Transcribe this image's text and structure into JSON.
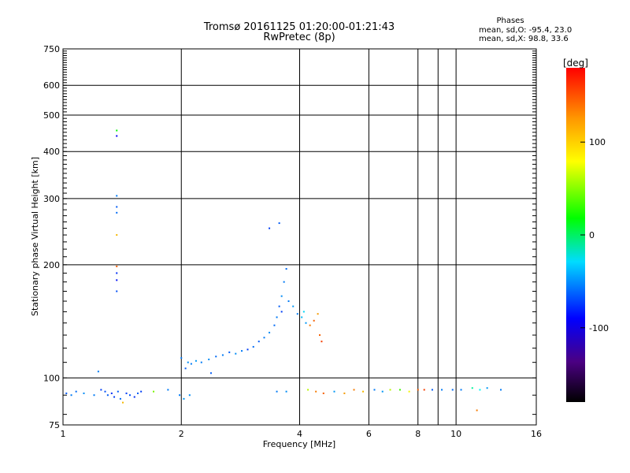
{
  "header": {
    "title_line1": "Tromsø 20161125 01:20:00-01:21:43",
    "title_line2": "RwPretec (8p)",
    "phases_label": "Phases",
    "phases_o": "mean, sd,O: -95.4, 23.0",
    "phases_x": "mean, sd,X:  98.8, 33.6"
  },
  "colorbar": {
    "label": "[deg]",
    "ticks": [
      "100",
      "0",
      "-100"
    ],
    "tick_values": [
      100,
      0,
      -100
    ],
    "range": [
      -180,
      180
    ]
  },
  "chart_data": {
    "type": "scatter",
    "title": "Tromsø 20161125 01:20:00-01:21:43",
    "subtitle": "RwPretec (8p)",
    "xlabel": "Frequency [MHz]",
    "ylabel": "Stationary phase Virtual Height [km]",
    "xscale": "log",
    "yscale": "log",
    "xlim": [
      1,
      16
    ],
    "ylim": [
      75,
      750
    ],
    "x_ticks": [
      1,
      2,
      4,
      6,
      8,
      10,
      16
    ],
    "x_tick_labels": [
      "1",
      "2",
      "4",
      "6",
      "8",
      "10",
      "16"
    ],
    "y_ticks": [
      75,
      100,
      200,
      300,
      400,
      500,
      600,
      750
    ],
    "y_tick_labels": [
      "75",
      "100",
      "200",
      "300",
      "400",
      "500",
      "600",
      "750"
    ],
    "grid": true,
    "color_encodes": "phase [deg]",
    "points": [
      [
        1.02,
        91,
        -110
      ],
      [
        1.05,
        90,
        -100
      ],
      [
        1.08,
        92,
        -105
      ],
      [
        1.13,
        91,
        -95
      ],
      [
        1.2,
        90,
        -100
      ],
      [
        1.25,
        93,
        -120
      ],
      [
        1.28,
        92,
        -115
      ],
      [
        1.3,
        90,
        -110
      ],
      [
        1.33,
        91,
        -125
      ],
      [
        1.35,
        89,
        -120
      ],
      [
        1.38,
        92,
        -110
      ],
      [
        1.4,
        88,
        -105
      ],
      [
        1.42,
        86,
        120
      ],
      [
        1.45,
        91,
        -120
      ],
      [
        1.48,
        90,
        -115
      ],
      [
        1.52,
        89,
        -125
      ],
      [
        1.55,
        91,
        -110
      ],
      [
        1.58,
        92,
        -120
      ],
      [
        1.7,
        92,
        60
      ],
      [
        1.85,
        93,
        -100
      ],
      [
        1.98,
        90,
        -100
      ],
      [
        2.03,
        88,
        -90
      ],
      [
        2.1,
        90,
        -95
      ],
      [
        1.23,
        104,
        -100
      ],
      [
        1.37,
        455,
        20
      ],
      [
        1.37,
        440,
        -140
      ],
      [
        1.37,
        305,
        -100
      ],
      [
        1.37,
        285,
        -110
      ],
      [
        1.37,
        275,
        -105
      ],
      [
        1.37,
        240,
        120
      ],
      [
        1.37,
        198,
        150
      ],
      [
        1.37,
        190,
        -125
      ],
      [
        1.37,
        182,
        -135
      ],
      [
        1.37,
        170,
        -115
      ],
      [
        2.0,
        113,
        -100
      ],
      [
        2.05,
        106,
        -110
      ],
      [
        2.08,
        110,
        -95
      ],
      [
        2.12,
        109,
        -100
      ],
      [
        2.18,
        111,
        -90
      ],
      [
        2.25,
        110,
        -100
      ],
      [
        2.35,
        112,
        -95
      ],
      [
        2.45,
        114,
        -105
      ],
      [
        2.55,
        115,
        -100
      ],
      [
        2.65,
        117,
        -110
      ],
      [
        2.75,
        116,
        -95
      ],
      [
        2.85,
        118,
        -100
      ],
      [
        2.95,
        119,
        -120
      ],
      [
        3.05,
        121,
        -105
      ],
      [
        3.15,
        125,
        -110
      ],
      [
        3.25,
        128,
        -100
      ],
      [
        3.35,
        132,
        -95
      ],
      [
        3.45,
        138,
        -105
      ],
      [
        3.5,
        145,
        -100
      ],
      [
        3.55,
        155,
        -110
      ],
      [
        3.6,
        165,
        -95
      ],
      [
        3.65,
        180,
        -100
      ],
      [
        3.7,
        195,
        -105
      ],
      [
        3.35,
        250,
        -120
      ],
      [
        3.55,
        258,
        -110
      ],
      [
        3.6,
        150,
        -120
      ],
      [
        3.75,
        160,
        -100
      ],
      [
        3.85,
        155,
        -90
      ],
      [
        3.95,
        148,
        -100
      ],
      [
        4.05,
        145,
        -80
      ],
      [
        4.1,
        150,
        -70
      ],
      [
        4.15,
        140,
        -90
      ],
      [
        4.25,
        138,
        140
      ],
      [
        4.35,
        142,
        150
      ],
      [
        4.45,
        148,
        130
      ],
      [
        4.5,
        130,
        150
      ],
      [
        4.55,
        125,
        160
      ],
      [
        2.38,
        103,
        -110
      ],
      [
        3.5,
        92,
        -100
      ],
      [
        3.7,
        92,
        -95
      ],
      [
        4.2,
        93,
        80
      ],
      [
        4.4,
        92,
        140
      ],
      [
        4.6,
        91,
        150
      ],
      [
        4.9,
        92,
        -90
      ],
      [
        5.2,
        91,
        130
      ],
      [
        5.5,
        93,
        140
      ],
      [
        5.8,
        92,
        120
      ],
      [
        6.2,
        93,
        -100
      ],
      [
        6.5,
        92,
        -90
      ],
      [
        6.8,
        93,
        80
      ],
      [
        7.2,
        93,
        40
      ],
      [
        7.6,
        92,
        100
      ],
      [
        8.0,
        93,
        150
      ],
      [
        8.3,
        93,
        160
      ],
      [
        8.7,
        93,
        -110
      ],
      [
        9.2,
        93,
        -100
      ],
      [
        9.8,
        93,
        -105
      ],
      [
        10.3,
        93,
        -100
      ],
      [
        11.0,
        94,
        -30
      ],
      [
        11.5,
        93,
        -60
      ],
      [
        12.0,
        94,
        -90
      ],
      [
        13.0,
        93,
        -100
      ],
      [
        11.3,
        82,
        140
      ]
    ]
  }
}
